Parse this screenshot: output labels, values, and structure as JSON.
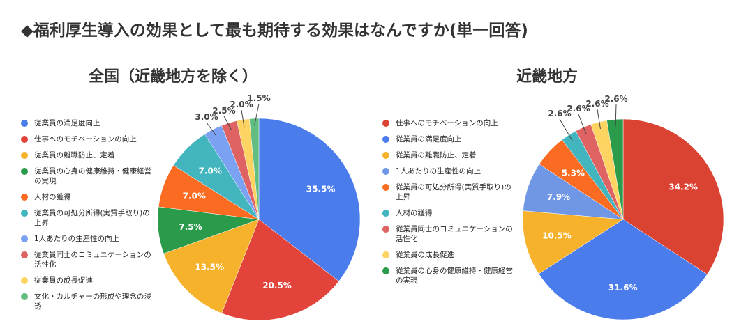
{
  "title": "◆福利厚生導入の効果として最も期待する効果はなんですか(単一回答)",
  "chart_data": [
    {
      "type": "pie",
      "title": "全国（近畿地方を除く）",
      "legend_position": "left",
      "labels": [
        "従業員の満足度向上",
        "仕事へのモチベーションの向上",
        "従業員の離職防止、定着",
        "従業員の心身の健康維持・健康経営の実現",
        "人材の獲得",
        "従業員の可処分所得(実質手取り)の上昇",
        "1人あたりの生産性の向上",
        "従業員同士のコミュニケーションの活性化",
        "従業員の成長促進",
        "文化・カルチャーの形成や理念の浸透"
      ],
      "values": [
        35.5,
        20.5,
        13.5,
        7.5,
        7.0,
        7.0,
        3.0,
        2.5,
        2.0,
        1.5
      ],
      "value_labels": [
        "35.5%",
        "20.5%",
        "13.5%",
        "7.5%",
        "7.0%",
        "7.0%",
        "3.0%",
        "2.5%",
        "2.0%",
        "1.5%"
      ],
      "colors": [
        "#4a7cec",
        "#e2433a",
        "#f7b22c",
        "#2a9b4b",
        "#fb6b21",
        "#43b5be",
        "#7ba1f2",
        "#df6363",
        "#fdd462",
        "#62bd80"
      ]
    },
    {
      "type": "pie",
      "title": "近畿地方",
      "legend_position": "left",
      "labels": [
        "仕事へのモチベーションの向上",
        "従業員の満足度向上",
        "従業員の離職防止、定着",
        "1人あたりの生産性の向上",
        "従業員の可処分所得(実質手取り)の上昇",
        "人材の獲得",
        "従業員同士のコミュニケーションの活性化",
        "従業員の成長促進",
        "従業員の心身の健康維持・健康経営の実現"
      ],
      "values": [
        34.2,
        31.6,
        10.5,
        7.9,
        5.3,
        2.6,
        2.6,
        2.6,
        2.6
      ],
      "value_labels": [
        "34.2%",
        "31.6%",
        "10.5%",
        "7.9%",
        "5.3%",
        "2.6%",
        "2.6%",
        "2.6%",
        "2.6%"
      ],
      "colors": [
        "#da4232",
        "#4a7cec",
        "#f7b22c",
        "#6f97e6",
        "#fb6b21",
        "#43b5be",
        "#df6363",
        "#fdd462",
        "#2a9b4b"
      ]
    }
  ]
}
